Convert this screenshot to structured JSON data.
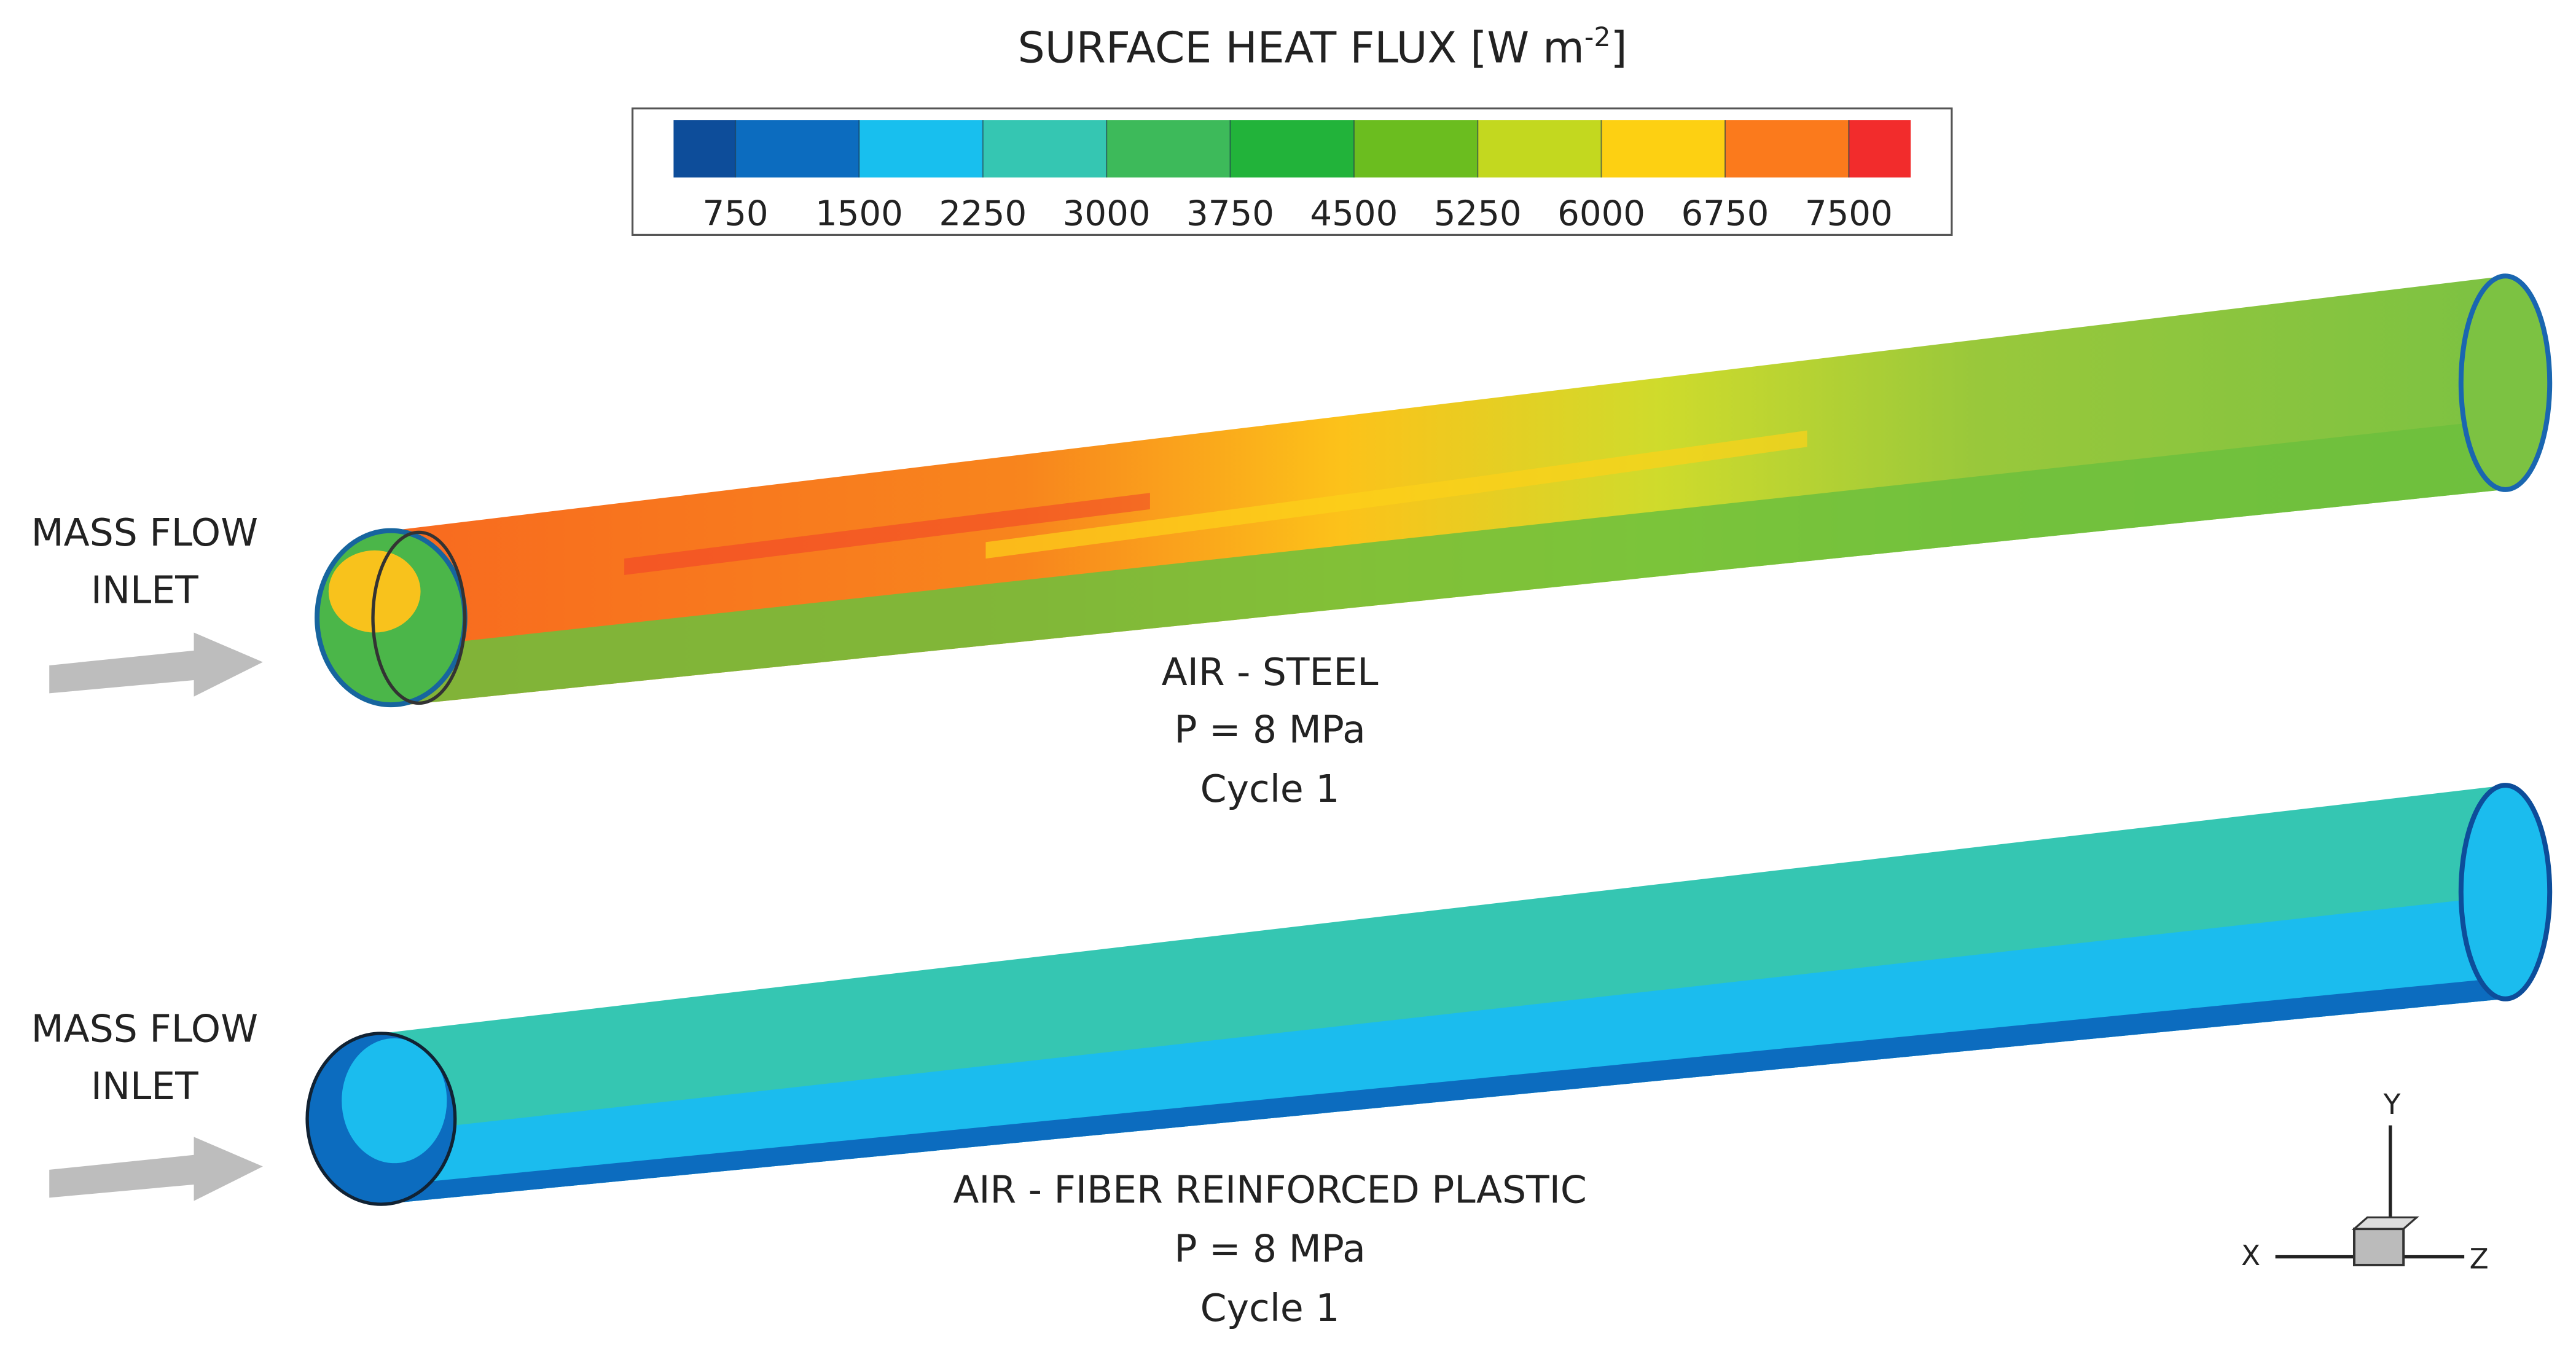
{
  "colorbar": {
    "title": "SURFACE HEAT FLUX [W m",
    "title_superscript": "-2",
    "title_end": "]",
    "colors": [
      "#0d4d9a",
      "#0c6cbf",
      "#18bfee",
      "#35c6b2",
      "#3dba5a",
      "#22b33a",
      "#6bbd1f",
      "#c3d81f",
      "#fdd012",
      "#fb7a1c",
      "#f22c2c"
    ],
    "ticks": [
      750,
      1500,
      2250,
      3000,
      3750,
      4500,
      5250,
      6000,
      6750,
      7500
    ]
  },
  "panels": [
    {
      "inlet_label": [
        "MASS FLOW",
        "INLET"
      ],
      "caption": [
        "AIR - STEEL",
        "P = 8 MPa",
        "Cycle 1"
      ]
    },
    {
      "inlet_label": [
        "MASS FLOW",
        "INLET"
      ],
      "caption": [
        "AIR - FIBER REINFORCED PLASTIC",
        "P = 8 MPa",
        "Cycle 1"
      ]
    }
  ],
  "axes_triad": {
    "y": "Y",
    "x": "X",
    "z": "Z"
  }
}
